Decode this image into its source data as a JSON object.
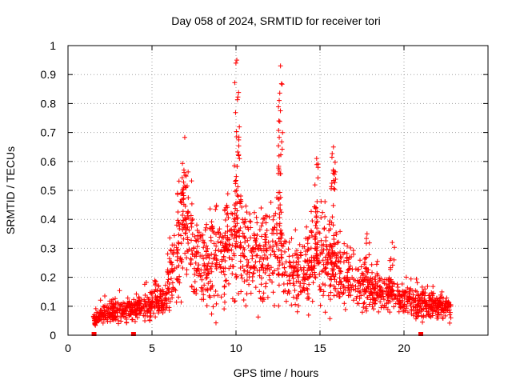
{
  "chart_data": {
    "type": "scatter",
    "title": "Day 058 of 2024, SRMTID for receiver tori",
    "xlabel": "GPS time / hours",
    "ylabel": "SRMTID / TECUs",
    "xlim": [
      0,
      25
    ],
    "ylim": [
      0,
      1
    ],
    "xticks": [
      0,
      5,
      10,
      15,
      20
    ],
    "yticks": [
      0,
      0.1,
      0.2,
      0.3,
      0.4,
      0.5,
      0.6,
      0.7,
      0.8,
      0.9,
      1
    ],
    "grid": true,
    "marker": "+",
    "color": "#ff0000",
    "profile": [
      [
        1.5,
        0.05
      ],
      [
        2.0,
        0.07
      ],
      [
        3.0,
        0.08
      ],
      [
        4.0,
        0.09
      ],
      [
        5.0,
        0.11
      ],
      [
        5.8,
        0.14
      ],
      [
        6.4,
        0.25
      ],
      [
        6.8,
        0.38
      ],
      [
        7.2,
        0.32
      ],
      [
        7.8,
        0.24
      ],
      [
        8.5,
        0.26
      ],
      [
        9.3,
        0.27
      ],
      [
        10.0,
        0.33
      ],
      [
        10.6,
        0.3
      ],
      [
        11.3,
        0.28
      ],
      [
        12.0,
        0.27
      ],
      [
        12.6,
        0.29
      ],
      [
        13.2,
        0.21
      ],
      [
        14.0,
        0.2
      ],
      [
        14.6,
        0.26
      ],
      [
        15.2,
        0.25
      ],
      [
        16.0,
        0.24
      ],
      [
        16.8,
        0.2
      ],
      [
        17.5,
        0.16
      ],
      [
        18.5,
        0.15
      ],
      [
        19.3,
        0.14
      ],
      [
        20.0,
        0.12
      ],
      [
        21.0,
        0.11
      ],
      [
        22.0,
        0.1
      ],
      [
        22.8,
        0.09
      ]
    ],
    "spikes": [
      {
        "x": 6.9,
        "peak": 0.57,
        "width": 0.45
      },
      {
        "x": 10.05,
        "peak": 0.95,
        "width": 0.55
      },
      {
        "x": 12.65,
        "peak": 0.93,
        "width": 0.45
      },
      {
        "x": 14.8,
        "peak": 0.61,
        "width": 0.35
      },
      {
        "x": 15.8,
        "peak": 0.65,
        "width": 0.45
      },
      {
        "x": 9.4,
        "peak": 0.44,
        "width": 0.45
      },
      {
        "x": 19.3,
        "peak": 0.32,
        "width": 0.5
      },
      {
        "x": 17.8,
        "peak": 0.35,
        "width": 0.6
      }
    ],
    "gap_markers": [
      1.55,
      3.9,
      21.0
    ]
  }
}
